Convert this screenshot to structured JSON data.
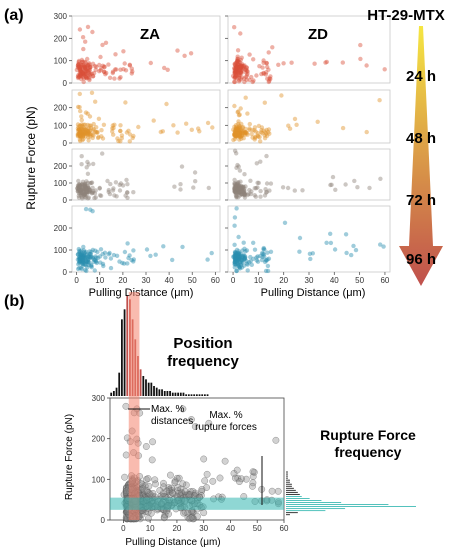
{
  "figure": {
    "panel_a_label": "(a)",
    "panel_b_label": "(b)",
    "cell_line": "HT-29-MTX",
    "timepoints": [
      "24 h",
      "48 h",
      "72 h",
      "96 h"
    ],
    "arrow_colors": {
      "top": "#f5e642",
      "bottom": "#c0504d"
    }
  },
  "chart_data": [
    {
      "type": "scatter",
      "panel": "a",
      "grid": "2 columns x 4 rows of small scatter plots",
      "columns": [
        "ZA",
        "ZD"
      ],
      "rows": [
        "24 h",
        "48 h",
        "72 h",
        "96 h"
      ],
      "row_colors": [
        "#d9503a",
        "#e0922a",
        "#8e8279",
        "#2a8fb0"
      ],
      "xlabel": "Pulling Distance (μm)",
      "ylabel": "Rupture Force (pN)",
      "xlim": [
        -2,
        62
      ],
      "ylim": [
        0,
        300
      ],
      "xticks": [
        0,
        10,
        20,
        30,
        40,
        50,
        60
      ],
      "yticks": [
        0,
        100,
        200,
        300
      ],
      "series_summary": {
        "ZA": {
          "x_range": [
            0,
            60
          ],
          "dense_x_max": 10,
          "dense_y_range": [
            20,
            120
          ]
        },
        "ZD": {
          "x_range": [
            0,
            60
          ],
          "dense_x_max": 8,
          "dense_y_range": [
            20,
            110
          ]
        }
      }
    },
    {
      "type": "scatter",
      "panel": "b",
      "xlabel": "Pulling Distance (μm)",
      "ylabel": "Rupture Force (pN)",
      "xlim": [
        -5,
        60
      ],
      "ylim": [
        0,
        300
      ],
      "xticks": [
        0,
        10,
        20,
        30,
        40,
        50,
        60
      ],
      "yticks": [
        0,
        100,
        200,
        300
      ],
      "highlight_x_band": [
        2,
        6
      ],
      "highlight_y_band": [
        25,
        55
      ],
      "highlight_colors": {
        "x_band": "#f4846e",
        "y_band": "#33b7b0"
      },
      "position_frequency": {
        "title": "Position frequency",
        "bin_start": -5,
        "bin_width": 1,
        "counts": [
          2,
          3,
          5,
          14,
          46,
          52,
          60,
          58,
          46,
          34,
          24,
          16,
          12,
          10,
          8,
          8,
          6,
          5,
          4,
          4,
          3,
          3,
          3,
          2,
          2,
          2,
          2,
          2,
          1,
          1,
          1,
          1,
          1,
          1,
          1,
          1,
          1
        ]
      },
      "rupture_force_frequency": {
        "title": "Rupture Force frequency",
        "bin_start": 0,
        "bin_width": 5,
        "counts": [
          0,
          0,
          2,
          6,
          20,
          30,
          66,
          52,
          28,
          18,
          12,
          8,
          7,
          6,
          5,
          4,
          3,
          3,
          2,
          2,
          1,
          1,
          1,
          1
        ]
      },
      "annotations": [
        "Max. % distances",
        "Max. % rupture forces"
      ]
    }
  ]
}
